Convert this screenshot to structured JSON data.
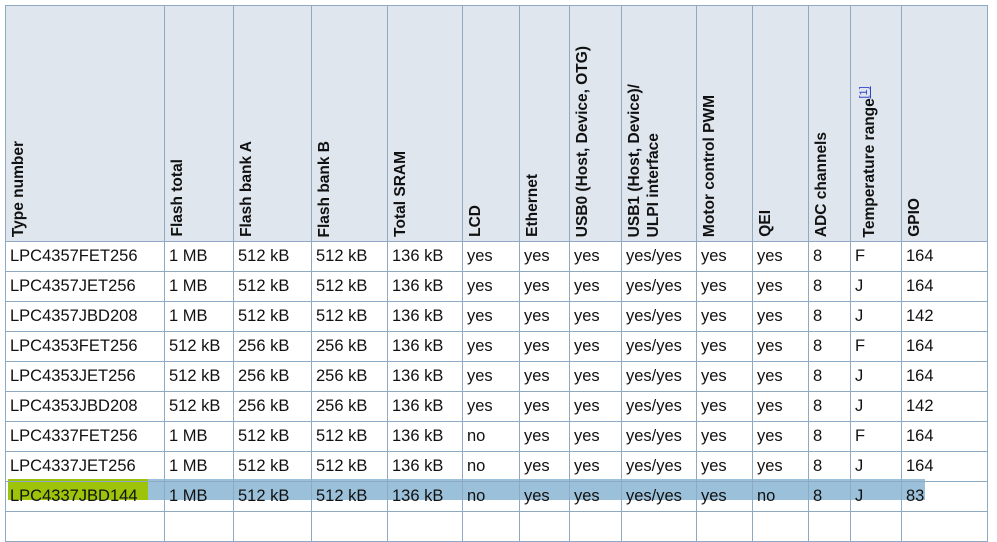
{
  "table": {
    "headers": [
      "Type number",
      "Flash total",
      "Flash bank A",
      "Flash bank B",
      "Total SRAM",
      "LCD",
      "Ethernet",
      "USB0 (Host, Device, OTG)",
      "USB1 (Host, Device)/\nULPI interface",
      "Motor control PWM",
      "QEI",
      "ADC channels",
      "Temperature range",
      "GPIO"
    ],
    "footnote_ref": "[1]",
    "rows": [
      [
        "LPC4357FET256",
        "1 MB",
        "512 kB",
        "512 kB",
        "136 kB",
        "yes",
        "yes",
        "yes",
        "yes/yes",
        "yes",
        "yes",
        "8",
        "F",
        "164"
      ],
      [
        "LPC4357JET256",
        "1 MB",
        "512 kB",
        "512 kB",
        "136 kB",
        "yes",
        "yes",
        "yes",
        "yes/yes",
        "yes",
        "yes",
        "8",
        "J",
        "164"
      ],
      [
        "LPC4357JBD208",
        "1 MB",
        "512 kB",
        "512 kB",
        "136 kB",
        "yes",
        "yes",
        "yes",
        "yes/yes",
        "yes",
        "yes",
        "8",
        "J",
        "142"
      ],
      [
        "LPC4353FET256",
        "512 kB",
        "256 kB",
        "256 kB",
        "136 kB",
        "yes",
        "yes",
        "yes",
        "yes/yes",
        "yes",
        "yes",
        "8",
        "F",
        "164"
      ],
      [
        "LPC4353JET256",
        "512 kB",
        "256 kB",
        "256 kB",
        "136 kB",
        "yes",
        "yes",
        "yes",
        "yes/yes",
        "yes",
        "yes",
        "8",
        "J",
        "164"
      ],
      [
        "LPC4353JBD208",
        "512 kB",
        "256 kB",
        "256 kB",
        "136 kB",
        "yes",
        "yes",
        "yes",
        "yes/yes",
        "yes",
        "yes",
        "8",
        "J",
        "142"
      ],
      [
        "LPC4337FET256",
        "1 MB",
        "512 kB",
        "512 kB",
        "136 kB",
        "no",
        "yes",
        "yes",
        "yes/yes",
        "yes",
        "yes",
        "8",
        "F",
        "164"
      ],
      [
        "LPC4337JET256",
        "1 MB",
        "512 kB",
        "512 kB",
        "136 kB",
        "no",
        "yes",
        "yes",
        "yes/yes",
        "yes",
        "yes",
        "8",
        "J",
        "164"
      ],
      [
        "LPC4337JBD144",
        "1 MB",
        "512 kB",
        "512 kB",
        "136 kB",
        "no",
        "yes",
        "yes",
        "yes/yes",
        "yes",
        "no",
        "8",
        "J",
        "83"
      ]
    ],
    "highlighted_row": 8
  },
  "colors": {
    "header_bg": "#dfe6ee",
    "border": "#8ea9c1",
    "selection": "#9bc0d9",
    "highlight": "#9dc30a"
  }
}
